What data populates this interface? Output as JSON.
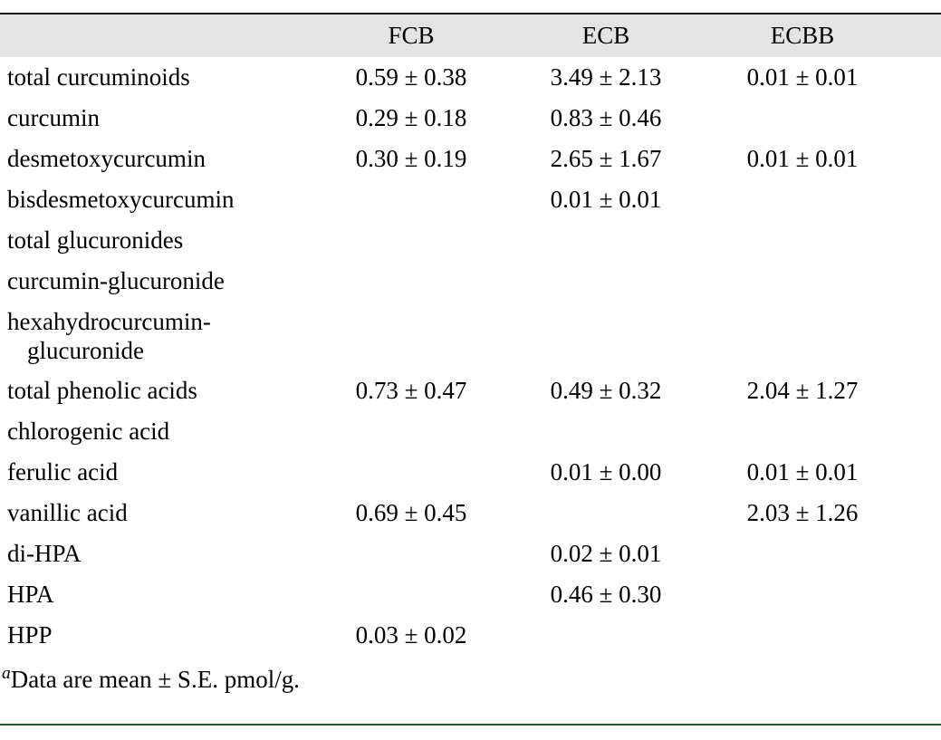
{
  "colors": {
    "header_background": "#e4e4e4",
    "top_rule": "#1a1a1a",
    "bottom_rule": "#2e5a3a",
    "text": "#000000"
  },
  "table": {
    "columns": {
      "col0": "",
      "col1": "FCB",
      "col2": "ECB",
      "col3": "ECBB"
    },
    "rows": [
      {
        "label": "total curcuminoids",
        "values": [
          "0.59 ± 0.38",
          "3.49 ± 2.13",
          "0.01 ± 0.01"
        ]
      },
      {
        "label": "curcumin",
        "values": [
          "0.29 ± 0.18",
          "0.83 ± 0.46",
          ""
        ]
      },
      {
        "label": "desmetoxycurcumin",
        "values": [
          "0.30 ± 0.19",
          "2.65 ± 1.67",
          "0.01 ± 0.01"
        ]
      },
      {
        "label": "bisdesmetoxycurcumin",
        "values": [
          "",
          "0.01 ± 0.01",
          ""
        ]
      },
      {
        "label": "total glucuronides",
        "values": [
          "",
          "",
          ""
        ]
      },
      {
        "label": "curcumin-glucuronide",
        "values": [
          "",
          "",
          ""
        ]
      },
      {
        "label": "hexahydrocurcumin-glucuronide",
        "values": [
          "",
          "",
          ""
        ]
      },
      {
        "label": "total phenolic acids",
        "values": [
          "0.73 ± 0.47",
          "0.49 ± 0.32",
          "2.04 ± 1.27"
        ]
      },
      {
        "label": "chlorogenic acid",
        "values": [
          "",
          "",
          ""
        ]
      },
      {
        "label": "ferulic acid",
        "values": [
          "",
          "0.01 ± 0.00",
          "0.01 ± 0.01"
        ]
      },
      {
        "label": "vanillic acid",
        "values": [
          "0.69 ± 0.45",
          "",
          "2.03 ± 1.26"
        ]
      },
      {
        "label": "di-HPA",
        "values": [
          "",
          "0.02 ± 0.01",
          ""
        ]
      },
      {
        "label": "HPA",
        "values": [
          "",
          "0.46 ± 0.30",
          ""
        ]
      },
      {
        "label": "HPP",
        "values": [
          "0.03 ± 0.02",
          "",
          ""
        ]
      }
    ],
    "footnote": {
      "marker": "a",
      "text": "Data are mean ± S.E. pmol/g."
    }
  }
}
